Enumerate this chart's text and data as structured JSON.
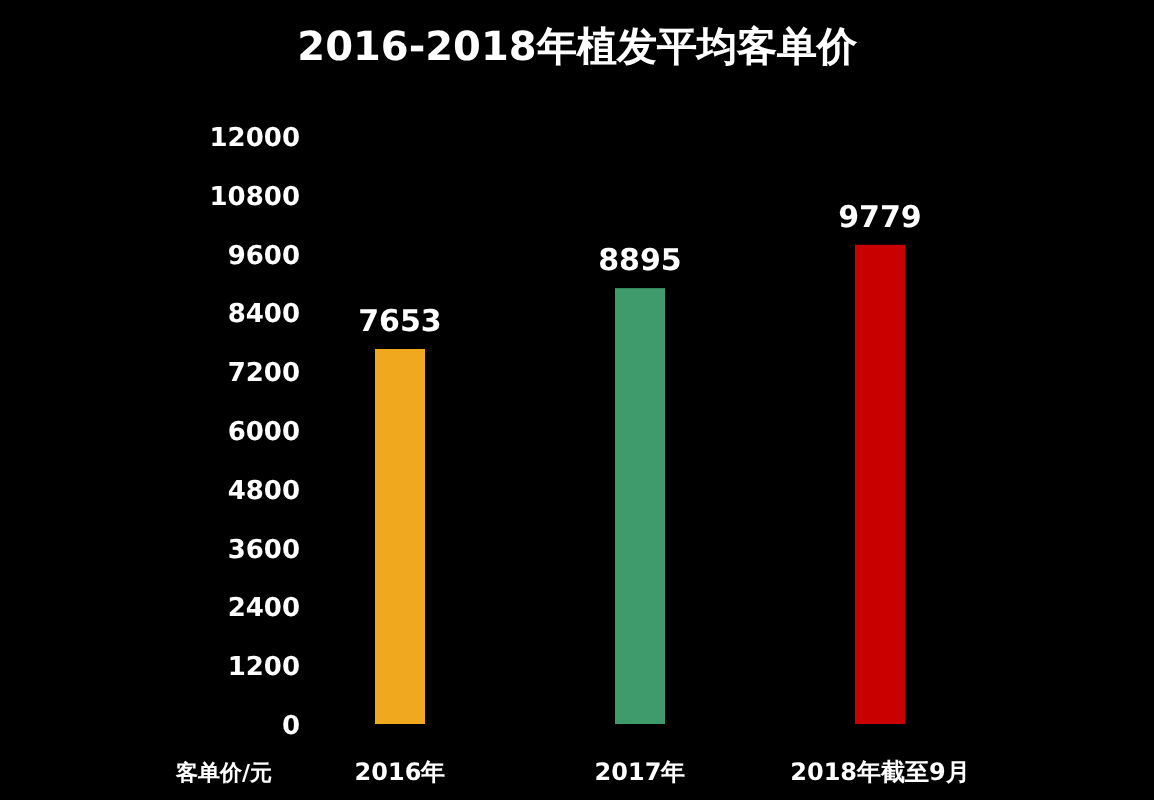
{
  "chart_data": {
    "type": "bar",
    "title": "2016-2018年植发平均客单价",
    "ylabel": "客单价/元",
    "categories": [
      "2016年",
      "2017年",
      "2018年截至9月"
    ],
    "values": [
      7653,
      8895,
      9779
    ],
    "colors": [
      "#f0a91e",
      "#3f9a6c",
      "#c90000"
    ],
    "ylim": [
      0,
      12000
    ],
    "yticks": [
      0,
      1200,
      2400,
      3600,
      4800,
      6000,
      7200,
      8400,
      9600,
      10800,
      12000
    ],
    "data_labels": true,
    "grid": false,
    "legend": false
  }
}
